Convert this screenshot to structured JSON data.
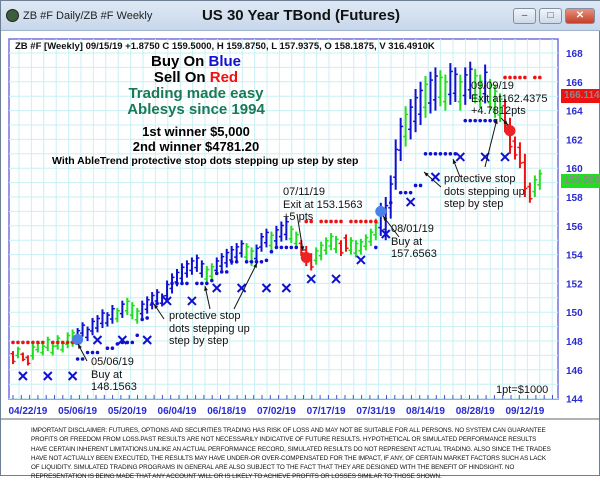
{
  "window": {
    "title": "ZB #F Daily/ZB #F Weekly",
    "chart_title": "US 30 Year TBond (Futures)",
    "minimize": "–",
    "maximize": "□",
    "close": "✕"
  },
  "header_line": "ZB #F [Weekly] 09/15/19 +1.8750 C 159.5000, H 159.8750, L 157.9375, O 158.1875, V 316.4910K",
  "promo": {
    "buy_prefix": "Buy On ",
    "buy_color_word": "Blue",
    "sell_prefix": "Sell On ",
    "sell_color_word": "Red",
    "line3": "Trading made easy",
    "line4": "Ablesys since 1994",
    "winner1": "1st winner $5,000",
    "winner2": "2nd winner $4781.20",
    "stops_note": "With AbleTrend protective stop dots stepping up step by step"
  },
  "annotations": {
    "trade1": {
      "date": "05/06/19",
      "l2": "Buy at",
      "l3": "148.1563"
    },
    "trade2": {
      "date": "07/11/19",
      "l2": "Exit at 153.1563",
      "l3": "+5 pts"
    },
    "trade3": {
      "date": "08/01/19",
      "l2": "Buy at",
      "l3": "157.6563"
    },
    "trade4": {
      "date": "09/09/19",
      "l2": "Exit at162.4375",
      "l3": "+4.7812pts"
    },
    "stops_left": {
      "l1": "protective stop",
      "l2": "dots stepping up",
      "l3": "step by step"
    },
    "stops_right": {
      "l1": "protective stop",
      "l2": "dots stepping up",
      "l3": "step by step"
    },
    "point_value": "1pt=$1000"
  },
  "price_labels": {
    "stop": "166.114",
    "last": "159.500"
  },
  "colors": {
    "up": "#1010d0",
    "neutral": "#22dd22",
    "down": "#ee1111",
    "axis": "#2a2ad0",
    "grid": "#c8f0f4",
    "promo_green": "#1a7a55"
  },
  "disclaimer": "IMPORTANT DISCLAIMER: FUTURES, OPTIONS AND SECURITIES TRADING HAS RISK OF LOSS AND MAY NOT BE SUITABLE FOR ALL PERSONS. NO SYSTEM CAN GUARANTEE PROFITS OR FREEDOM FROM LOSS.PAST RESULTS ARE NOT NECESSARILY INDICATIVE OF FUTURE RESULTS. HYPOTHETICAL OR SIMULATED PERFORMANCE RESULTS HAVE CERTAIN INHERENT LIMITATIONS.UNLIKE AN ACTUAL PERFORMANCE RECORD, SIMULATED RESULTS DO NOT REPRESENT ACTUAL TRADING. ALSO SINCE THE TRADES HAVE NOT ACTUALLY BEEN EXECUTED, THE RESULTS MAY HAVE UNDER-OR OVER-COMPENSATED FOR THE IMPACT, IF ANY, OF CERTAIN MARKET FACTORS SUCH AS LACK OF LIQUIDITY. SIMULATED TRADING PROGRAMS IN GENERAL ARE ALSO SUBJECT TO THE FACT THAT THEY ARE DESIGNED WITH THE BENEFIT OF HINDSIGHT. NO REPRESENTATION IS BEING MADE THAT ANY ACCOUNT WILL OR IS LIKELY TO ACHIEVE PROFITS OR LOSSES SIMILAR TO THOSE SHOWN.",
  "chart_data": {
    "type": "bar",
    "title": "US 30 Year TBond (Futures)",
    "ylim": [
      144,
      168
    ],
    "y_ticks": [
      144,
      146,
      148,
      150,
      152,
      154,
      156,
      158,
      160,
      162,
      164,
      166,
      168
    ],
    "x_tick_labels": [
      {
        "label": "04/22/19",
        "bar": 3
      },
      {
        "label": "05/06/19",
        "bar": 13
      },
      {
        "label": "05/20/19",
        "bar": 23
      },
      {
        "label": "06/04/19",
        "bar": 33
      },
      {
        "label": "06/18/19",
        "bar": 43
      },
      {
        "label": "07/02/19",
        "bar": 53
      },
      {
        "label": "07/17/19",
        "bar": 63
      },
      {
        "label": "07/31/19",
        "bar": 73
      },
      {
        "label": "08/14/19",
        "bar": 83
      },
      {
        "label": "08/28/19",
        "bar": 93
      },
      {
        "label": "09/12/19",
        "bar": 103
      }
    ],
    "bars": [
      [
        146.4,
        147.3,
        "r"
      ],
      [
        146.8,
        147.6,
        "g"
      ],
      [
        146.6,
        147.2,
        "r"
      ],
      [
        146.3,
        147.0,
        "r"
      ],
      [
        146.7,
        147.8,
        "g"
      ],
      [
        147.2,
        148.0,
        "g"
      ],
      [
        147.0,
        147.8,
        "g"
      ],
      [
        147.3,
        148.3,
        "g"
      ],
      [
        147.0,
        147.8,
        "g"
      ],
      [
        147.4,
        148.4,
        "g"
      ],
      [
        147.2,
        148.0,
        "g"
      ],
      [
        147.5,
        148.6,
        "g"
      ],
      [
        147.6,
        148.8,
        "g"
      ],
      [
        148.0,
        148.9,
        "b"
      ],
      [
        148.3,
        149.3,
        "b"
      ],
      [
        148.0,
        149.0,
        "b"
      ],
      [
        148.4,
        149.6,
        "b"
      ],
      [
        148.6,
        149.8,
        "b"
      ],
      [
        148.9,
        150.2,
        "b"
      ],
      [
        149.0,
        150.0,
        "b"
      ],
      [
        149.2,
        150.5,
        "b"
      ],
      [
        149.3,
        150.3,
        "g"
      ],
      [
        149.6,
        150.8,
        "b"
      ],
      [
        149.8,
        151.0,
        "g"
      ],
      [
        149.5,
        150.7,
        "g"
      ],
      [
        149.2,
        150.3,
        "g"
      ],
      [
        149.6,
        150.8,
        "b"
      ],
      [
        149.9,
        151.1,
        "b"
      ],
      [
        150.2,
        151.4,
        "b"
      ],
      [
        150.5,
        151.6,
        "b"
      ],
      [
        150.4,
        151.3,
        "b"
      ],
      [
        150.8,
        152.2,
        "b"
      ],
      [
        151.3,
        152.7,
        "b"
      ],
      [
        151.8,
        153.0,
        "b"
      ],
      [
        152.0,
        153.4,
        "b"
      ],
      [
        152.4,
        153.6,
        "b"
      ],
      [
        152.6,
        153.8,
        "b"
      ],
      [
        152.8,
        154.0,
        "b"
      ],
      [
        152.4,
        153.6,
        "b"
      ],
      [
        152.0,
        153.2,
        "g"
      ],
      [
        152.2,
        153.4,
        "g"
      ],
      [
        152.6,
        153.8,
        "b"
      ],
      [
        152.9,
        154.1,
        "b"
      ],
      [
        153.1,
        154.4,
        "b"
      ],
      [
        153.3,
        154.6,
        "b"
      ],
      [
        153.5,
        154.8,
        "b"
      ],
      [
        153.8,
        155.0,
        "b"
      ],
      [
        153.5,
        154.8,
        "g"
      ],
      [
        153.2,
        154.5,
        "g"
      ],
      [
        153.4,
        154.7,
        "b"
      ],
      [
        154.2,
        155.5,
        "b"
      ],
      [
        154.5,
        155.8,
        "b"
      ],
      [
        154.3,
        155.6,
        "g"
      ],
      [
        154.6,
        156.0,
        "b"
      ],
      [
        154.9,
        156.3,
        "b"
      ],
      [
        155.0,
        156.6,
        "b"
      ],
      [
        154.8,
        156.0,
        "g"
      ],
      [
        154.5,
        155.6,
        "g"
      ],
      [
        153.9,
        155.0,
        "r"
      ],
      [
        153.2,
        154.6,
        "r"
      ],
      [
        152.9,
        154.1,
        "r"
      ],
      [
        153.3,
        154.5,
        "g"
      ],
      [
        153.6,
        154.9,
        "g"
      ],
      [
        154.0,
        155.2,
        "g"
      ],
      [
        154.3,
        155.5,
        "g"
      ],
      [
        154.1,
        155.3,
        "g"
      ],
      [
        153.9,
        155.0,
        "r"
      ],
      [
        154.2,
        155.4,
        "r"
      ],
      [
        154.0,
        155.2,
        "g"
      ],
      [
        153.8,
        155.0,
        "g"
      ],
      [
        154.0,
        155.1,
        "g"
      ],
      [
        154.3,
        155.4,
        "g"
      ],
      [
        154.6,
        155.8,
        "g"
      ],
      [
        155.0,
        156.5,
        "g"
      ],
      [
        155.3,
        157.6,
        "b"
      ],
      [
        155.0,
        158.0,
        "b"
      ],
      [
        156.5,
        159.5,
        "b"
      ],
      [
        158.5,
        162.0,
        "b"
      ],
      [
        160.5,
        163.5,
        "b"
      ],
      [
        161.5,
        164.3,
        "g"
      ],
      [
        162.0,
        164.8,
        "b"
      ],
      [
        162.5,
        165.5,
        "b"
      ],
      [
        163.0,
        166.0,
        "b"
      ],
      [
        163.5,
        166.4,
        "g"
      ],
      [
        163.8,
        166.7,
        "b"
      ],
      [
        164.0,
        167.0,
        "b"
      ],
      [
        164.3,
        166.8,
        "g"
      ],
      [
        164.0,
        166.5,
        "g"
      ],
      [
        164.4,
        167.3,
        "b"
      ],
      [
        164.6,
        167.0,
        "b"
      ],
      [
        164.0,
        166.5,
        "g"
      ],
      [
        164.4,
        167.0,
        "b"
      ],
      [
        164.8,
        167.4,
        "b"
      ],
      [
        164.5,
        166.9,
        "g"
      ],
      [
        164.2,
        166.5,
        "g"
      ],
      [
        164.5,
        167.2,
        "b"
      ],
      [
        164.0,
        166.2,
        "g"
      ],
      [
        163.5,
        165.8,
        "g"
      ],
      [
        163.2,
        165.2,
        "g"
      ],
      [
        162.5,
        164.8,
        "r"
      ],
      [
        161.0,
        163.5,
        "r"
      ],
      [
        160.6,
        162.2,
        "r"
      ],
      [
        160.0,
        161.8,
        "r"
      ],
      [
        158.0,
        161.0,
        "r"
      ],
      [
        157.6,
        159.0,
        "r"
      ],
      [
        158.0,
        159.5,
        "g"
      ],
      [
        158.5,
        159.9,
        "g"
      ]
    ],
    "blue_stop_dots": [
      [
        13,
        146.75
      ],
      [
        14,
        146.75
      ],
      [
        15,
        147.2
      ],
      [
        16,
        147.2
      ],
      [
        17,
        147.2
      ],
      [
        19,
        147.5
      ],
      [
        20,
        147.5
      ],
      [
        21,
        147.8
      ],
      [
        22,
        147.9
      ],
      [
        23,
        147.9
      ],
      [
        24,
        147.9
      ],
      [
        25,
        148.4
      ],
      [
        26,
        149.5
      ],
      [
        27,
        149.6
      ],
      [
        28,
        150.6
      ],
      [
        29,
        150.6
      ],
      [
        32,
        152.0
      ],
      [
        33,
        152.0
      ],
      [
        34,
        152.0
      ],
      [
        35,
        152.0
      ],
      [
        37,
        152.0
      ],
      [
        38,
        152.0
      ],
      [
        39,
        152.0
      ],
      [
        40,
        152.2
      ],
      [
        41,
        152.7
      ],
      [
        42,
        152.8
      ],
      [
        43,
        152.8
      ],
      [
        44,
        153.5
      ],
      [
        45,
        153.5
      ],
      [
        47,
        153.5
      ],
      [
        48,
        153.5
      ],
      [
        49,
        153.5
      ],
      [
        50,
        153.5
      ],
      [
        51,
        153.6
      ],
      [
        52,
        154.2
      ],
      [
        53,
        154.5
      ],
      [
        54,
        154.5
      ],
      [
        55,
        154.5
      ],
      [
        56,
        154.5
      ],
      [
        57,
        154.5
      ],
      [
        73,
        154.5
      ],
      [
        76,
        157.6
      ],
      [
        78,
        158.3
      ],
      [
        79,
        158.3
      ],
      [
        80,
        158.3
      ],
      [
        81,
        158.8
      ],
      [
        82,
        158.8
      ],
      [
        83,
        161.0
      ],
      [
        84,
        161.0
      ],
      [
        85,
        161.0
      ],
      [
        86,
        161.0
      ],
      [
        87,
        161.0
      ],
      [
        88,
        161.0
      ],
      [
        89,
        161.0
      ],
      [
        91,
        163.3
      ],
      [
        92,
        163.3
      ],
      [
        93,
        163.3
      ],
      [
        94,
        163.3
      ],
      [
        95,
        163.3
      ],
      [
        96,
        163.3
      ],
      [
        97,
        163.3
      ]
    ],
    "red_stop_dots": [
      [
        0,
        147.9
      ],
      [
        1,
        147.9
      ],
      [
        2,
        147.9
      ],
      [
        3,
        147.9
      ],
      [
        4,
        147.9
      ],
      [
        5,
        147.9
      ],
      [
        6,
        147.9
      ],
      [
        8,
        147.9
      ],
      [
        9,
        147.9
      ],
      [
        10,
        147.9
      ],
      [
        11,
        147.9
      ],
      [
        12,
        147.9
      ],
      [
        59,
        156.3
      ],
      [
        60,
        156.3
      ],
      [
        62,
        156.3
      ],
      [
        63,
        156.3
      ],
      [
        64,
        156.3
      ],
      [
        65,
        156.3
      ],
      [
        66,
        156.3
      ],
      [
        68,
        156.3
      ],
      [
        69,
        156.3
      ],
      [
        70,
        156.3
      ],
      [
        71,
        156.3
      ],
      [
        72,
        156.3
      ],
      [
        73,
        156.3
      ],
      [
        99,
        166.3
      ],
      [
        100,
        166.3
      ],
      [
        101,
        166.3
      ],
      [
        102,
        166.3
      ],
      [
        103,
        166.3
      ],
      [
        105,
        166.3
      ],
      [
        106,
        166.3
      ]
    ],
    "weekly_stop_x": [
      [
        2,
        145.57
      ],
      [
        7,
        145.57
      ],
      [
        12,
        145.57
      ],
      [
        17,
        148.07
      ],
      [
        22,
        148.07
      ],
      [
        27,
        148.07
      ],
      [
        31,
        150.78
      ],
      [
        36,
        150.78
      ],
      [
        41,
        151.68
      ],
      [
        46,
        151.68
      ],
      [
        51,
        151.68
      ],
      [
        55,
        151.68
      ],
      [
        60,
        152.31
      ],
      [
        65,
        152.31
      ],
      [
        70,
        153.63
      ],
      [
        75,
        155.43
      ],
      [
        80,
        157.65
      ],
      [
        85,
        159.39
      ],
      [
        90,
        160.78
      ],
      [
        95,
        160.78
      ],
      [
        99,
        160.78
      ]
    ],
    "signals": [
      {
        "bar": 13,
        "price": 148.1,
        "type": "buy"
      },
      {
        "bar": 59,
        "price": 153.8,
        "type": "exit"
      },
      {
        "bar": 74,
        "price": 157.0,
        "type": "buy"
      },
      {
        "bar": 100,
        "price": 162.6,
        "type": "exit"
      }
    ]
  }
}
